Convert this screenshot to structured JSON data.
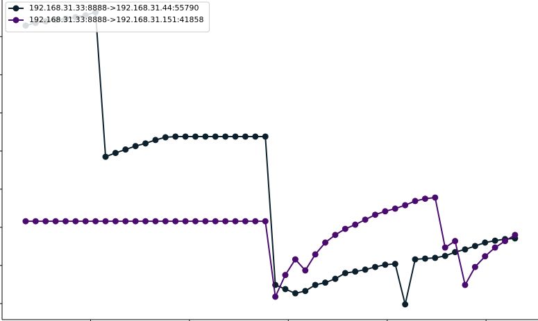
{
  "chart_data": {
    "type": "line",
    "x": [
      0,
      1,
      2,
      3,
      4,
      5,
      6,
      7,
      8,
      9,
      10,
      11,
      12,
      13,
      14,
      15,
      16,
      17,
      18,
      19,
      20,
      21,
      22,
      23,
      24,
      25,
      26,
      27,
      28,
      29,
      30,
      31,
      32,
      33,
      34,
      35,
      36,
      37,
      38,
      39,
      40,
      41,
      42,
      43,
      44,
      45,
      46,
      47,
      48,
      49
    ],
    "series": [
      {
        "name": "192.168.31.33:8888->192.168.31.44:55790",
        "color": "#0b1f2c",
        "values": [
          72.9,
          73.6,
          74.0,
          74.4,
          74.7,
          75.1,
          75.6,
          76.4,
          38.5,
          39.5,
          40.4,
          41.3,
          42.0,
          42.9,
          43.6,
          43.8,
          43.8,
          43.8,
          43.8,
          43.8,
          43.8,
          43.8,
          43.8,
          43.8,
          43.8,
          4.9,
          3.8,
          2.7,
          3.3,
          4.9,
          5.5,
          6.5,
          8.0,
          8.4,
          8.9,
          9.6,
          10.2,
          10.4,
          -0.2,
          11.6,
          11.8,
          12.0,
          12.5,
          13.5,
          14.2,
          15.1,
          16.0,
          16.5,
          16.9,
          17.1
        ]
      },
      {
        "name": "192.168.31.33:8888->192.168.31.151:41858",
        "color": "#4b0b6e",
        "values": [
          21.6,
          21.6,
          21.6,
          21.6,
          21.6,
          21.6,
          21.6,
          21.6,
          21.6,
          21.6,
          21.6,
          21.6,
          21.6,
          21.6,
          21.6,
          21.6,
          21.6,
          21.6,
          21.6,
          21.6,
          21.6,
          21.6,
          21.6,
          21.6,
          21.6,
          1.8,
          7.5,
          11.6,
          8.7,
          12.9,
          16.0,
          18.0,
          19.6,
          20.7,
          22.0,
          23.3,
          24.2,
          24.9,
          25.8,
          26.9,
          27.5,
          27.8,
          14.7,
          16.4,
          4.9,
          9.6,
          12.4,
          14.7,
          16.4,
          18.0
        ]
      }
    ],
    "xlim": [
      -2.36,
      51.3
    ],
    "xticks": [
      6.5,
      16.4,
      26.3,
      36.2,
      46.1
    ],
    "ylim": [
      -4.2,
      79.6
    ],
    "yticks": [
      0,
      10,
      20,
      30,
      40,
      50,
      60,
      70
    ],
    "legend": "upper left"
  }
}
